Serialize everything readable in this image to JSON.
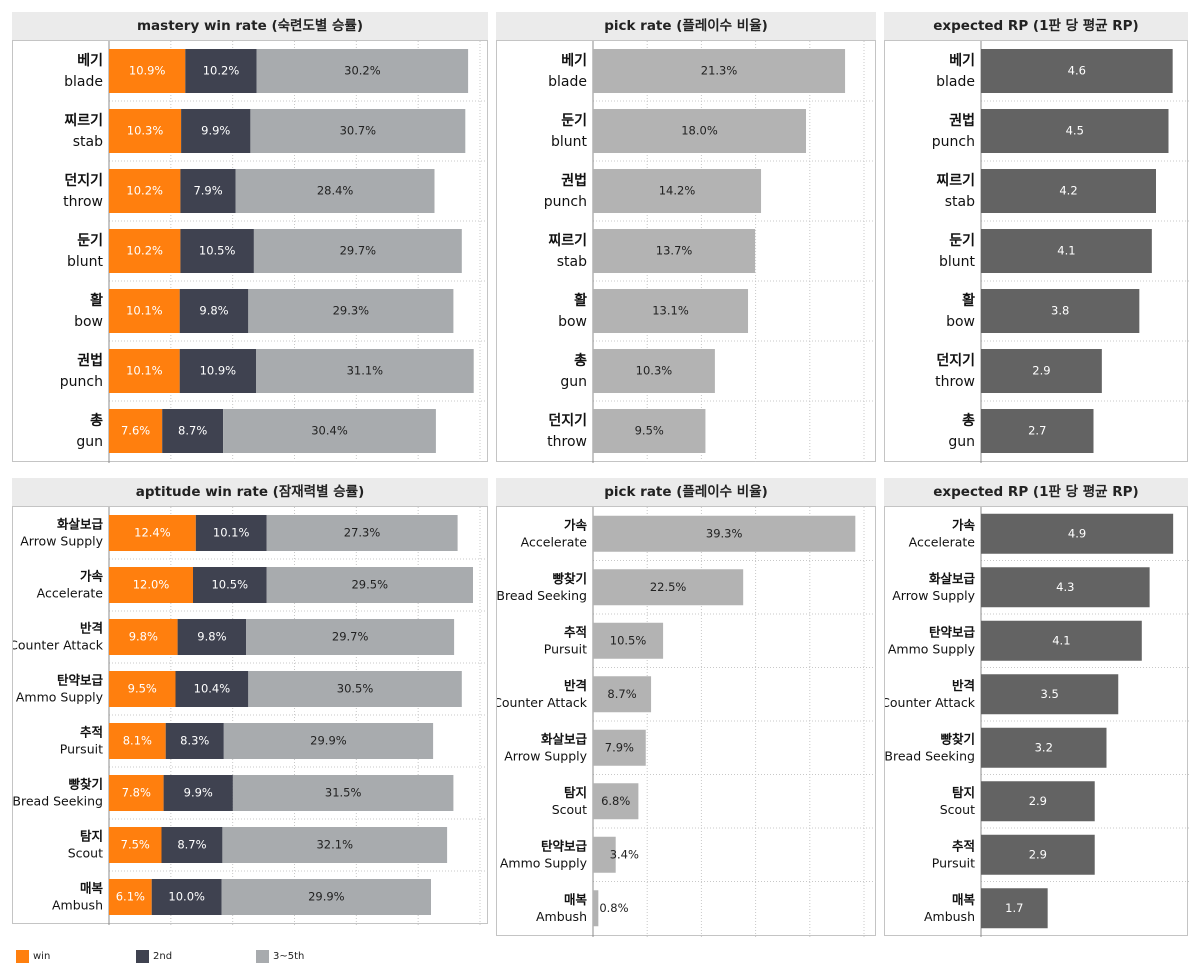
{
  "colors": {
    "win": "#ff7f0e",
    "second": "#3f4250",
    "third_fifth": "#a8abae",
    "pick": "#b3b3b3",
    "rp": "#636363"
  },
  "legend": [
    {
      "label": "win",
      "color": "#ff7f0e"
    },
    {
      "label": "2nd",
      "color": "#3f4250"
    },
    {
      "label": "3~5th",
      "color": "#a8abae"
    }
  ],
  "chart_data": [
    {
      "type": "bar",
      "stacked": true,
      "orientation": "horizontal",
      "title": "mastery win rate (숙련도별 승률)",
      "categories": [
        {
          "kr": "베기",
          "en": "blade"
        },
        {
          "kr": "찌르기",
          "en": "stab"
        },
        {
          "kr": "던지기",
          "en": "throw"
        },
        {
          "kr": "둔기",
          "en": "blunt"
        },
        {
          "kr": "활",
          "en": "bow"
        },
        {
          "kr": "권법",
          "en": "punch"
        },
        {
          "kr": "총",
          "en": "gun"
        }
      ],
      "series": [
        {
          "name": "win",
          "values": [
            10.9,
            10.3,
            10.2,
            10.2,
            10.1,
            10.1,
            7.6
          ]
        },
        {
          "name": "2nd",
          "values": [
            10.2,
            9.9,
            7.9,
            10.5,
            9.8,
            10.9,
            8.7
          ]
        },
        {
          "name": "3~5th",
          "values": [
            30.2,
            30.7,
            28.4,
            29.7,
            29.3,
            31.1,
            30.4
          ]
        }
      ],
      "xlim": [
        0,
        53
      ],
      "grid": true,
      "label_format": "{v}%"
    },
    {
      "type": "bar",
      "orientation": "horizontal",
      "title": "pick rate (플레이수 비율)",
      "categories": [
        {
          "kr": "베기",
          "en": "blade"
        },
        {
          "kr": "둔기",
          "en": "blunt"
        },
        {
          "kr": "권법",
          "en": "punch"
        },
        {
          "kr": "찌르기",
          "en": "stab"
        },
        {
          "kr": "활",
          "en": "bow"
        },
        {
          "kr": "총",
          "en": "gun"
        },
        {
          "kr": "던지기",
          "en": "throw"
        }
      ],
      "values": [
        21.3,
        18.0,
        14.2,
        13.7,
        13.1,
        10.3,
        9.5
      ],
      "xlim": [
        0,
        22.9
      ],
      "grid": true,
      "label_format": "{v}%"
    },
    {
      "type": "bar",
      "orientation": "horizontal",
      "title": "expected RP (1판 당 평균 RP)",
      "categories": [
        {
          "kr": "베기",
          "en": "blade"
        },
        {
          "kr": "권법",
          "en": "punch"
        },
        {
          "kr": "찌르기",
          "en": "stab"
        },
        {
          "kr": "둔기",
          "en": "blunt"
        },
        {
          "kr": "활",
          "en": "bow"
        },
        {
          "kr": "던지기",
          "en": "throw"
        },
        {
          "kr": "총",
          "en": "gun"
        }
      ],
      "values": [
        4.6,
        4.5,
        4.2,
        4.1,
        3.8,
        2.9,
        2.7
      ],
      "xlim": [
        0,
        4.8
      ],
      "grid": false,
      "label_format": "{v}"
    },
    {
      "type": "bar",
      "stacked": true,
      "orientation": "horizontal",
      "title": "aptitude win rate (잠재력별 승률)",
      "categories": [
        {
          "kr": "화살보급",
          "en": "Arrow Supply"
        },
        {
          "kr": "가속",
          "en": "Accelerate"
        },
        {
          "kr": "반격",
          "en": "Counter Attack"
        },
        {
          "kr": "탄약보급",
          "en": "Ammo Supply"
        },
        {
          "kr": "추적",
          "en": "Pursuit"
        },
        {
          "kr": "빵찾기",
          "en": "Bread Seeking"
        },
        {
          "kr": "탐지",
          "en": "Scout"
        },
        {
          "kr": "매복",
          "en": "Ambush"
        }
      ],
      "series": [
        {
          "name": "win",
          "values": [
            12.4,
            12.0,
            9.8,
            9.5,
            8.1,
            7.8,
            7.5,
            6.1
          ]
        },
        {
          "name": "2nd",
          "values": [
            10.1,
            10.5,
            9.8,
            10.4,
            8.3,
            9.9,
            8.7,
            10.0
          ]
        },
        {
          "name": "3~5th",
          "values": [
            27.3,
            29.5,
            29.7,
            30.5,
            29.9,
            31.5,
            32.1,
            29.9
          ]
        }
      ],
      "xlim": [
        0,
        53
      ],
      "grid": true,
      "label_format": "{v}%"
    },
    {
      "type": "bar",
      "orientation": "horizontal",
      "title": "pick rate (플레이수 비율)",
      "categories": [
        {
          "kr": "가속",
          "en": "Accelerate"
        },
        {
          "kr": "빵찾기",
          "en": "Bread Seeking"
        },
        {
          "kr": "추적",
          "en": "Pursuit"
        },
        {
          "kr": "반격",
          "en": "Counter Attack"
        },
        {
          "kr": "화살보급",
          "en": "Arrow Supply"
        },
        {
          "kr": "탐지",
          "en": "Scout"
        },
        {
          "kr": "탄약보급",
          "en": "Ammo Supply"
        },
        {
          "kr": "매복",
          "en": "Ambush"
        }
      ],
      "values": [
        39.3,
        22.5,
        10.5,
        8.7,
        7.9,
        6.8,
        3.4,
        0.8
      ],
      "xlim": [
        0,
        40.6
      ],
      "grid": true,
      "label_format": "{v}%"
    },
    {
      "type": "bar",
      "orientation": "horizontal",
      "title": "expected RP (1판 당 평균 RP)",
      "categories": [
        {
          "kr": "가속",
          "en": "Accelerate"
        },
        {
          "kr": "화살보급",
          "en": "Arrow Supply"
        },
        {
          "kr": "탄약보급",
          "en": "Ammo Supply"
        },
        {
          "kr": "반격",
          "en": "Counter Attack"
        },
        {
          "kr": "빵찾기",
          "en": "Bread Seeking"
        },
        {
          "kr": "탐지",
          "en": "Scout"
        },
        {
          "kr": "추적",
          "en": "Pursuit"
        },
        {
          "kr": "매복",
          "en": "Ambush"
        }
      ],
      "values": [
        4.9,
        4.3,
        4.1,
        3.5,
        3.2,
        2.9,
        2.9,
        1.7
      ],
      "xlim": [
        0,
        5.1
      ],
      "grid": false,
      "label_format": "{v}"
    }
  ]
}
